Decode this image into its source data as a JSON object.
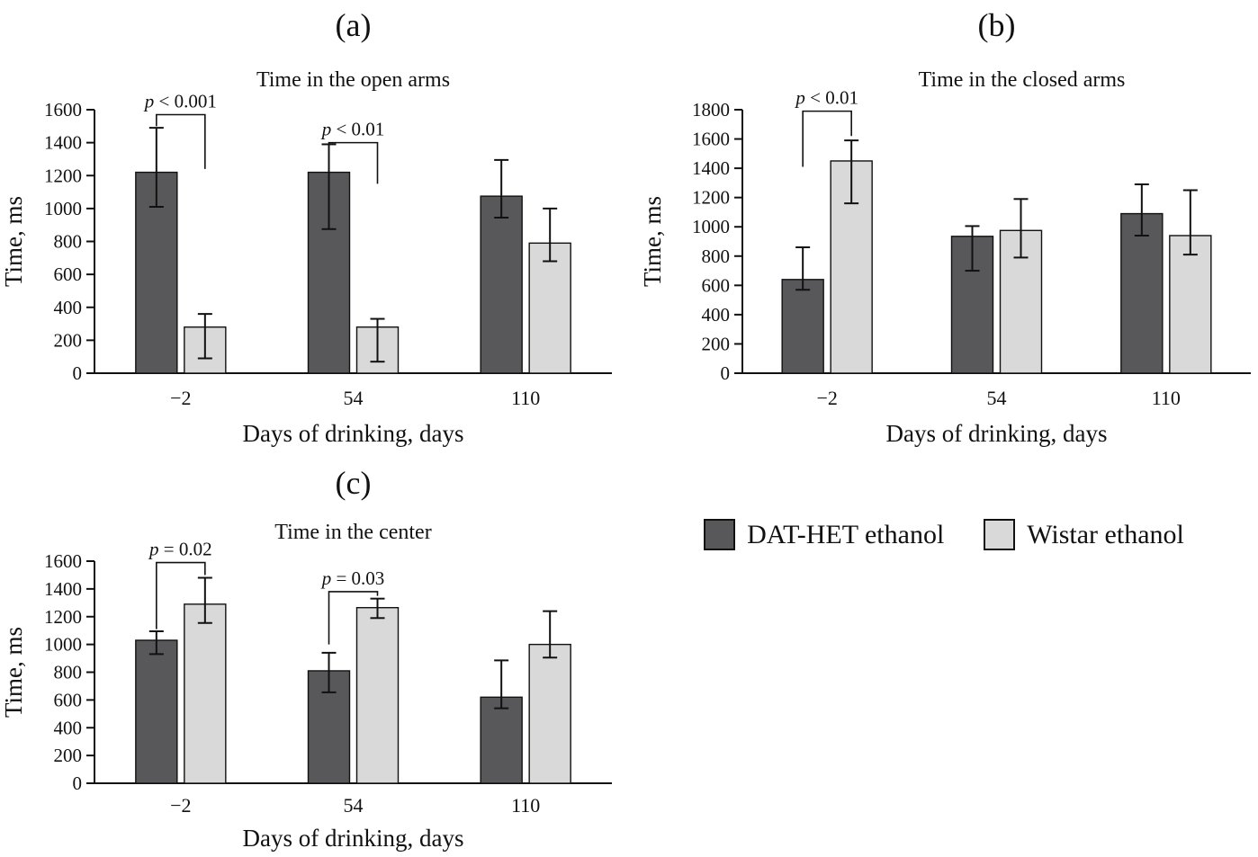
{
  "legend": {
    "entries": [
      {
        "label": "DAT-HET ethanol",
        "color": "#58585a"
      },
      {
        "label": "Wistar ethanol",
        "color": "#d9d9d9"
      }
    ]
  },
  "chart_data": [
    {
      "id": "a",
      "type": "bar",
      "panel_label": "(a)",
      "title": "Time in the open arms",
      "ylabel": "Time, ms",
      "xlabel": "Days of drinking, days",
      "ylim": [
        0,
        1600
      ],
      "ytick_step": 200,
      "grid": false,
      "categories": [
        "−2",
        "54",
        "110"
      ],
      "series": [
        {
          "name": "DAT-HET ethanol",
          "values": [
            1220,
            1220,
            1075
          ],
          "err_low": [
            210,
            345,
            130
          ],
          "err_high": [
            270,
            170,
            220
          ]
        },
        {
          "name": "Wistar ethanol",
          "values": [
            280,
            280,
            790
          ],
          "err_low": [
            190,
            210,
            110
          ],
          "err_high": [
            80,
            50,
            210
          ]
        }
      ],
      "annotations": [
        {
          "text": "p < 0.001",
          "group": 0,
          "bar_y": 1570,
          "left_end": 1500,
          "right_end": 1240
        },
        {
          "text": "p < 0.01",
          "group": 1,
          "bar_y": 1400,
          "left_end": 1340,
          "right_end": 1150
        }
      ]
    },
    {
      "id": "b",
      "type": "bar",
      "panel_label": "(b)",
      "title": "Time in the closed arms",
      "ylabel": "Time, ms",
      "xlabel": "Days of drinking, days",
      "ylim": [
        0,
        1800
      ],
      "ytick_step": 200,
      "grid": false,
      "categories": [
        "−2",
        "54",
        "110"
      ],
      "series": [
        {
          "name": "DAT-HET ethanol",
          "values": [
            640,
            935,
            1090
          ],
          "err_low": [
            70,
            235,
            150
          ],
          "err_high": [
            220,
            70,
            200
          ]
        },
        {
          "name": "Wistar ethanol",
          "values": [
            1450,
            975,
            940
          ],
          "err_low": [
            290,
            185,
            130
          ],
          "err_high": [
            140,
            215,
            310
          ]
        }
      ],
      "annotations": [
        {
          "text": "p < 0.01",
          "group": 0,
          "bar_y": 1790,
          "left_end": 1410,
          "right_end": 1620
        }
      ]
    },
    {
      "id": "c",
      "type": "bar",
      "panel_label": "(c)",
      "title": "Time in the center",
      "ylabel": "Time, ms",
      "xlabel": "Days of drinking, days",
      "ylim": [
        0,
        1600
      ],
      "ytick_step": 200,
      "grid": false,
      "categories": [
        "−2",
        "54",
        "110"
      ],
      "series": [
        {
          "name": "DAT-HET ethanol",
          "values": [
            1030,
            810,
            620
          ],
          "err_low": [
            100,
            155,
            80
          ],
          "err_high": [
            65,
            130,
            265
          ]
        },
        {
          "name": "Wistar ethanol",
          "values": [
            1290,
            1265,
            1000
          ],
          "err_low": [
            135,
            75,
            95
          ],
          "err_high": [
            190,
            65,
            240
          ]
        }
      ],
      "annotations": [
        {
          "text": "p = 0.02",
          "group": 0,
          "bar_y": 1590,
          "left_end": 1110,
          "right_end": 1500
        },
        {
          "text": "p = 0.03",
          "group": 1,
          "bar_y": 1380,
          "left_end": 1000,
          "right_end": 1350
        }
      ]
    }
  ]
}
